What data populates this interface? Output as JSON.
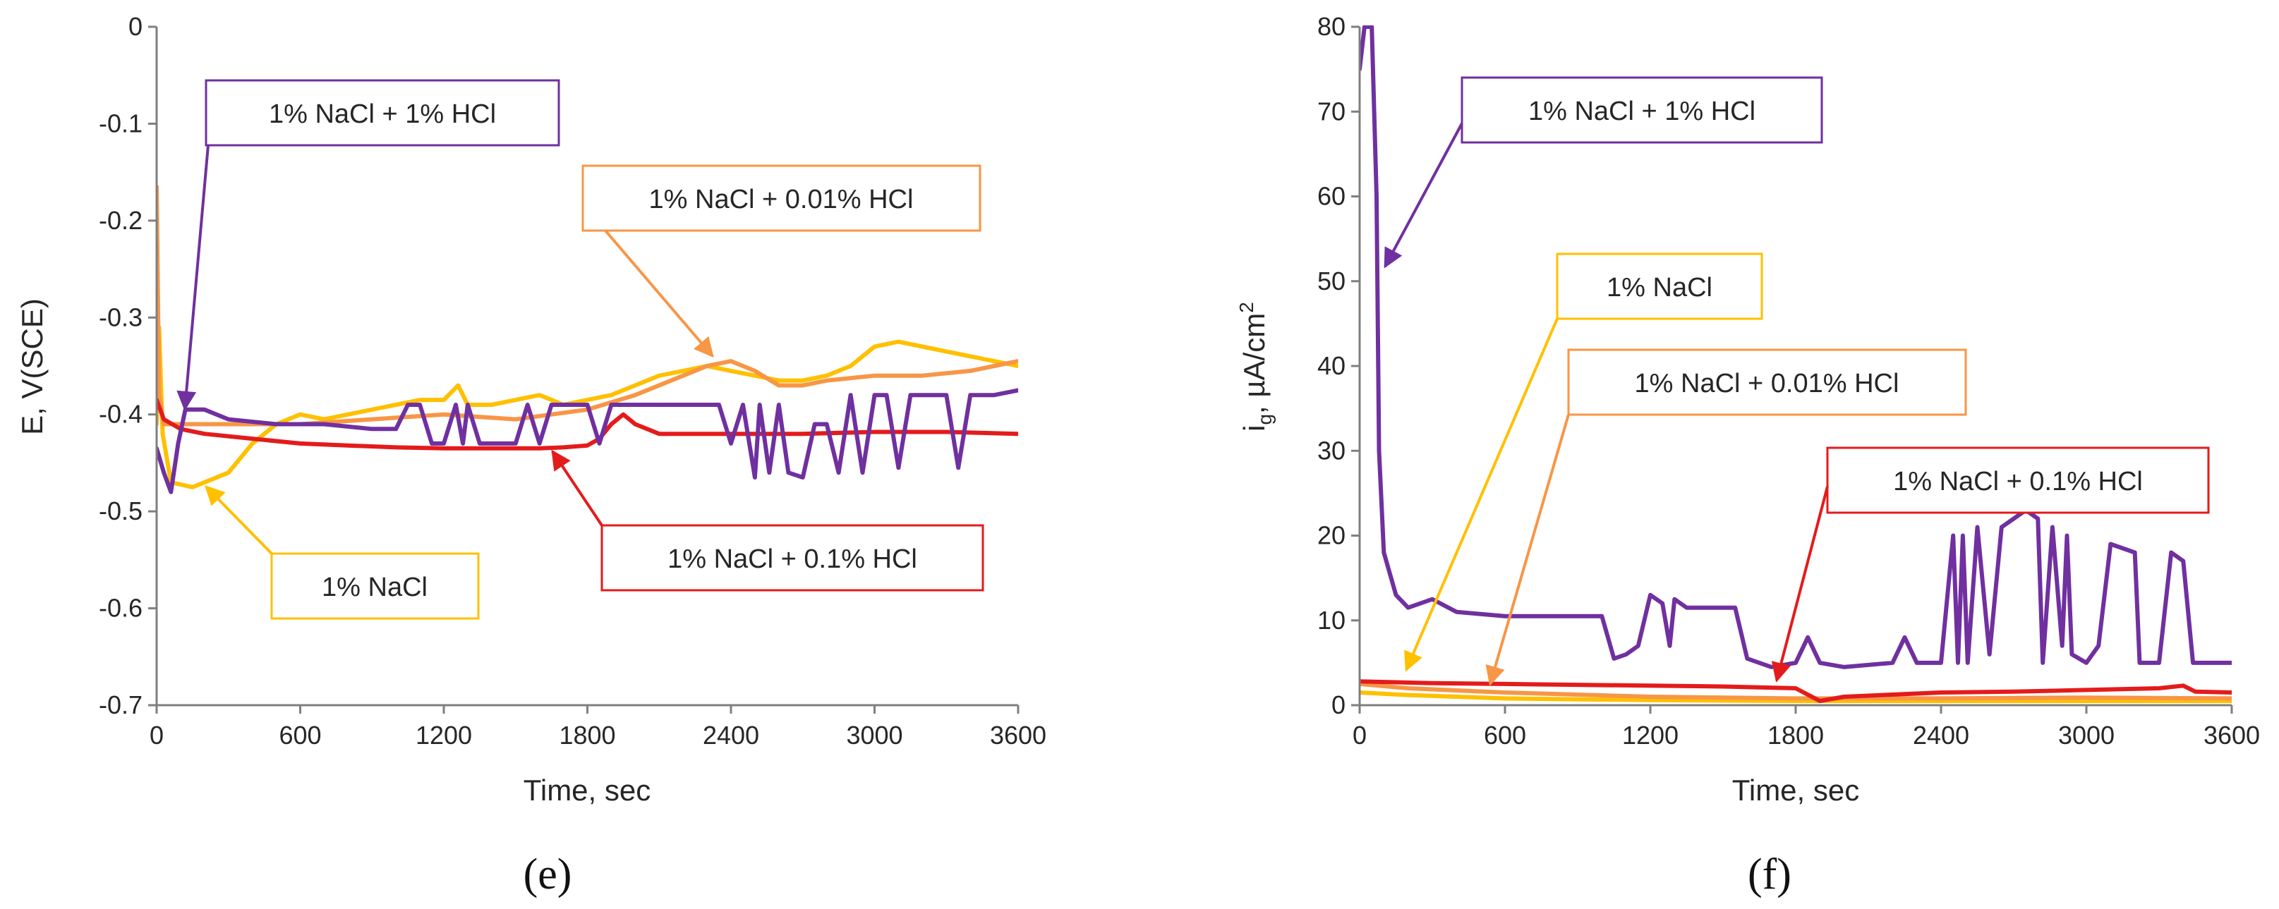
{
  "chart_data": [
    {
      "type": "line",
      "panel_label": "(e)",
      "xlabel": "Time, sec",
      "ylabel": "E, V(SCE)",
      "xlim": [
        0,
        3600
      ],
      "ylim": [
        -0.7,
        0
      ],
      "xticks": [
        "0",
        "600",
        "1200",
        "1800",
        "2400",
        "3000",
        "3600"
      ],
      "yticks": [
        "0",
        "-0.1",
        "-0.2",
        "-0.3",
        "-0.4",
        "-0.5",
        "-0.6",
        "-0.7"
      ],
      "grid": false,
      "series": [
        {
          "name": "1% NaCl",
          "color": "#FFC000",
          "points": [
            [
              0,
              -0.41
            ],
            [
              10,
              -0.31
            ],
            [
              25,
              -0.42
            ],
            [
              60,
              -0.47
            ],
            [
              150,
              -0.475
            ],
            [
              300,
              -0.46
            ],
            [
              400,
              -0.43
            ],
            [
              500,
              -0.41
            ],
            [
              600,
              -0.4
            ],
            [
              700,
              -0.405
            ],
            [
              800,
              -0.4
            ],
            [
              900,
              -0.395
            ],
            [
              1000,
              -0.39
            ],
            [
              1100,
              -0.385
            ],
            [
              1200,
              -0.385
            ],
            [
              1260,
              -0.37
            ],
            [
              1300,
              -0.39
            ],
            [
              1400,
              -0.39
            ],
            [
              1500,
              -0.385
            ],
            [
              1600,
              -0.38
            ],
            [
              1700,
              -0.39
            ],
            [
              1800,
              -0.385
            ],
            [
              1900,
              -0.38
            ],
            [
              2000,
              -0.37
            ],
            [
              2100,
              -0.36
            ],
            [
              2200,
              -0.355
            ],
            [
              2300,
              -0.35
            ],
            [
              2400,
              -0.355
            ],
            [
              2500,
              -0.36
            ],
            [
              2600,
              -0.365
            ],
            [
              2700,
              -0.365
            ],
            [
              2800,
              -0.36
            ],
            [
              2900,
              -0.35
            ],
            [
              3000,
              -0.33
            ],
            [
              3100,
              -0.325
            ],
            [
              3200,
              -0.33
            ],
            [
              3300,
              -0.335
            ],
            [
              3400,
              -0.34
            ],
            [
              3500,
              -0.345
            ],
            [
              3600,
              -0.35
            ]
          ]
        },
        {
          "name": "1% NaCl + 0.01% HCl",
          "color": "#F79646",
          "points": [
            [
              0,
              -0.165
            ],
            [
              10,
              -0.38
            ],
            [
              30,
              -0.41
            ],
            [
              100,
              -0.41
            ],
            [
              300,
              -0.41
            ],
            [
              600,
              -0.41
            ],
            [
              900,
              -0.405
            ],
            [
              1200,
              -0.4
            ],
            [
              1500,
              -0.405
            ],
            [
              1800,
              -0.395
            ],
            [
              2000,
              -0.38
            ],
            [
              2200,
              -0.36
            ],
            [
              2300,
              -0.35
            ],
            [
              2400,
              -0.345
            ],
            [
              2500,
              -0.355
            ],
            [
              2600,
              -0.37
            ],
            [
              2700,
              -0.37
            ],
            [
              2800,
              -0.365
            ],
            [
              3000,
              -0.36
            ],
            [
              3200,
              -0.36
            ],
            [
              3400,
              -0.355
            ],
            [
              3500,
              -0.35
            ],
            [
              3600,
              -0.345
            ]
          ]
        },
        {
          "name": "1% NaCl + 0.1% HCl",
          "color": "#E41B1B",
          "points": [
            [
              0,
              -0.385
            ],
            [
              30,
              -0.405
            ],
            [
              100,
              -0.415
            ],
            [
              200,
              -0.42
            ],
            [
              400,
              -0.425
            ],
            [
              600,
              -0.43
            ],
            [
              800,
              -0.432
            ],
            [
              1000,
              -0.434
            ],
            [
              1200,
              -0.435
            ],
            [
              1400,
              -0.435
            ],
            [
              1600,
              -0.435
            ],
            [
              1700,
              -0.434
            ],
            [
              1800,
              -0.432
            ],
            [
              1850,
              -0.425
            ],
            [
              1900,
              -0.41
            ],
            [
              1950,
              -0.4
            ],
            [
              2000,
              -0.41
            ],
            [
              2100,
              -0.42
            ],
            [
              2400,
              -0.42
            ],
            [
              2700,
              -0.42
            ],
            [
              3000,
              -0.418
            ],
            [
              3300,
              -0.418
            ],
            [
              3600,
              -0.42
            ]
          ]
        },
        {
          "name": "1% NaCl + 1% HCl",
          "color": "#7030A0",
          "points": [
            [
              0,
              -0.435
            ],
            [
              30,
              -0.46
            ],
            [
              60,
              -0.48
            ],
            [
              90,
              -0.43
            ],
            [
              120,
              -0.395
            ],
            [
              200,
              -0.395
            ],
            [
              300,
              -0.405
            ],
            [
              500,
              -0.41
            ],
            [
              700,
              -0.41
            ],
            [
              900,
              -0.415
            ],
            [
              1000,
              -0.415
            ],
            [
              1050,
              -0.39
            ],
            [
              1100,
              -0.39
            ],
            [
              1150,
              -0.43
            ],
            [
              1200,
              -0.43
            ],
            [
              1250,
              -0.39
            ],
            [
              1280,
              -0.43
            ],
            [
              1300,
              -0.39
            ],
            [
              1350,
              -0.43
            ],
            [
              1500,
              -0.43
            ],
            [
              1550,
              -0.39
            ],
            [
              1600,
              -0.43
            ],
            [
              1650,
              -0.39
            ],
            [
              1800,
              -0.39
            ],
            [
              1850,
              -0.43
            ],
            [
              1900,
              -0.39
            ],
            [
              2000,
              -0.39
            ],
            [
              2200,
              -0.39
            ],
            [
              2350,
              -0.39
            ],
            [
              2400,
              -0.43
            ],
            [
              2450,
              -0.39
            ],
            [
              2500,
              -0.465
            ],
            [
              2520,
              -0.39
            ],
            [
              2560,
              -0.46
            ],
            [
              2600,
              -0.39
            ],
            [
              2640,
              -0.46
            ],
            [
              2700,
              -0.465
            ],
            [
              2750,
              -0.41
            ],
            [
              2800,
              -0.41
            ],
            [
              2850,
              -0.46
            ],
            [
              2900,
              -0.38
            ],
            [
              2950,
              -0.46
            ],
            [
              3000,
              -0.38
            ],
            [
              3050,
              -0.38
            ],
            [
              3100,
              -0.455
            ],
            [
              3150,
              -0.38
            ],
            [
              3300,
              -0.38
            ],
            [
              3350,
              -0.455
            ],
            [
              3400,
              -0.38
            ],
            [
              3500,
              -0.38
            ],
            [
              3600,
              -0.375
            ]
          ]
        }
      ],
      "annotations": [
        {
          "text": "1% NaCl + 1% HCl",
          "color": "#7030A0"
        },
        {
          "text": "1% NaCl + 0.01% HCl",
          "color": "#F79646"
        },
        {
          "text": "1% NaCl",
          "color": "#FFC000"
        },
        {
          "text": "1% NaCl + 0.1% HCl",
          "color": "#E41B1B"
        }
      ]
    },
    {
      "type": "line",
      "panel_label": "(f)",
      "xlabel": "Time, sec",
      "ylabel_main": "i",
      "ylabel_sub": "g",
      "ylabel_rest": ", µA/cm",
      "ylabel_sup": "2",
      "xlim": [
        0,
        3600
      ],
      "ylim": [
        0,
        80
      ],
      "xticks": [
        "0",
        "600",
        "1200",
        "1800",
        "2400",
        "3000",
        "3600"
      ],
      "yticks": [
        "80",
        "70",
        "60",
        "50",
        "40",
        "30",
        "20",
        "10",
        "0"
      ],
      "grid": false,
      "series": [
        {
          "name": "1% NaCl + 1% HCl",
          "color": "#7030A0",
          "points": [
            [
              0,
              75
            ],
            [
              20,
              80
            ],
            [
              50,
              80
            ],
            [
              70,
              60
            ],
            [
              80,
              30
            ],
            [
              100,
              18
            ],
            [
              150,
              13
            ],
            [
              200,
              11.5
            ],
            [
              300,
              12.5
            ],
            [
              400,
              11
            ],
            [
              600,
              10.5
            ],
            [
              800,
              10.5
            ],
            [
              1000,
              10.5
            ],
            [
              1050,
              5.5
            ],
            [
              1100,
              6
            ],
            [
              1150,
              7
            ],
            [
              1200,
              13
            ],
            [
              1250,
              12
            ],
            [
              1280,
              7
            ],
            [
              1300,
              12.5
            ],
            [
              1350,
              11.5
            ],
            [
              1550,
              11.5
            ],
            [
              1600,
              5.5
            ],
            [
              1700,
              4.5
            ],
            [
              1800,
              5
            ],
            [
              1850,
              8
            ],
            [
              1900,
              5
            ],
            [
              2000,
              4.5
            ],
            [
              2200,
              5
            ],
            [
              2250,
              8
            ],
            [
              2300,
              5
            ],
            [
              2400,
              5
            ],
            [
              2450,
              20
            ],
            [
              2470,
              5
            ],
            [
              2490,
              20
            ],
            [
              2510,
              5
            ],
            [
              2550,
              21
            ],
            [
              2600,
              6
            ],
            [
              2650,
              21
            ],
            [
              2700,
              22
            ],
            [
              2750,
              23
            ],
            [
              2800,
              22
            ],
            [
              2820,
              5
            ],
            [
              2860,
              21
            ],
            [
              2900,
              7
            ],
            [
              2920,
              20
            ],
            [
              2940,
              6
            ],
            [
              3000,
              5
            ],
            [
              3050,
              7
            ],
            [
              3100,
              19
            ],
            [
              3200,
              18
            ],
            [
              3220,
              5
            ],
            [
              3300,
              5
            ],
            [
              3350,
              18
            ],
            [
              3400,
              17
            ],
            [
              3440,
              5
            ],
            [
              3600,
              5
            ]
          ]
        },
        {
          "name": "1% NaCl",
          "color": "#FFC000",
          "points": [
            [
              0,
              1.5
            ],
            [
              200,
              1.2
            ],
            [
              600,
              0.8
            ],
            [
              1200,
              0.6
            ],
            [
              1800,
              0.5
            ],
            [
              2400,
              0.5
            ],
            [
              3000,
              0.5
            ],
            [
              3600,
              0.5
            ]
          ]
        },
        {
          "name": "1% NaCl + 0.01% HCl",
          "color": "#F79646",
          "points": [
            [
              0,
              2.5
            ],
            [
              200,
              2
            ],
            [
              600,
              1.5
            ],
            [
              1200,
              1
            ],
            [
              1800,
              0.8
            ],
            [
              2400,
              0.8
            ],
            [
              3000,
              0.9
            ],
            [
              3600,
              0.8
            ]
          ]
        },
        {
          "name": "1% NaCl + 0.1% HCl",
          "color": "#E41B1B",
          "points": [
            [
              0,
              2.8
            ],
            [
              300,
              2.6
            ],
            [
              600,
              2.5
            ],
            [
              900,
              2.4
            ],
            [
              1200,
              2.3
            ],
            [
              1500,
              2.2
            ],
            [
              1800,
              2
            ],
            [
              1900,
              0.5
            ],
            [
              2000,
              1
            ],
            [
              2400,
              1.5
            ],
            [
              2700,
              1.6
            ],
            [
              3000,
              1.8
            ],
            [
              3300,
              2
            ],
            [
              3400,
              2.3
            ],
            [
              3450,
              1.6
            ],
            [
              3600,
              1.5
            ]
          ]
        }
      ],
      "annotations": [
        {
          "text": "1% NaCl + 1% HCl",
          "color": "#7030A0"
        },
        {
          "text": "1% NaCl",
          "color": "#FFC000"
        },
        {
          "text": "1% NaCl + 0.01% HCl",
          "color": "#F79646"
        },
        {
          "text": "1% NaCl + 0.1% HCl",
          "color": "#E41B1B"
        }
      ]
    }
  ]
}
